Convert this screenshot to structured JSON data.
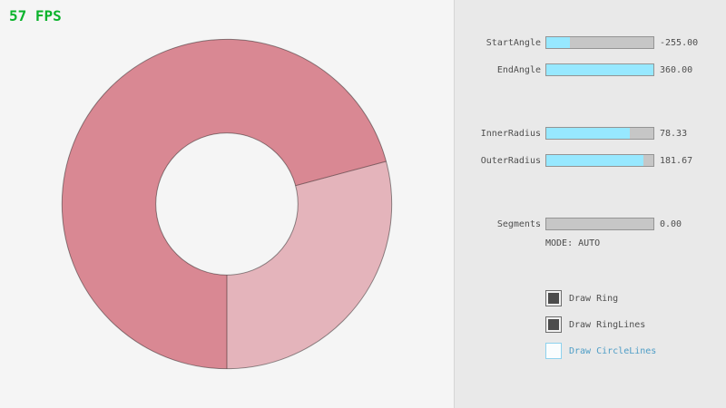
{
  "fps": "57 FPS",
  "colors": {
    "fps_green": "#0bb32c",
    "background": "#f5f5f5",
    "panel_background": "#e9e9e9",
    "slider_fill_cyan": "#97e8ff",
    "slider_track_gray": "#c6c6c6",
    "ring_dark_pink": "#d98893",
    "ring_light_pink": "#e4b4bb",
    "focused_blue_text": "#4e9dc6",
    "focused_blue_border": "#8ed2ee"
  },
  "ring": {
    "start_angle": "-255.00",
    "end_angle": "360.00",
    "inner_radius": "78.33",
    "outer_radius": "181.67",
    "segments": "0.00"
  },
  "panel": {
    "sliders": [
      {
        "label": "StartAngle",
        "value": "-255.00",
        "fill_pct": 21.7
      },
      {
        "label": "EndAngle",
        "value": "360.00",
        "fill_pct": 100
      },
      {
        "label": "InnerRadius",
        "value": "78.33",
        "fill_pct": 78.3
      },
      {
        "label": "OuterRadius",
        "value": "181.67",
        "fill_pct": 90.8
      },
      {
        "label": "Segments",
        "value": "0.00",
        "fill_pct": 0
      }
    ],
    "mode_text": "MODE: AUTO",
    "checkboxes": [
      {
        "label": "Draw Ring",
        "checked": true
      },
      {
        "label": "Draw RingLines",
        "checked": true
      },
      {
        "label": "Draw CircleLines",
        "checked": false
      }
    ]
  }
}
